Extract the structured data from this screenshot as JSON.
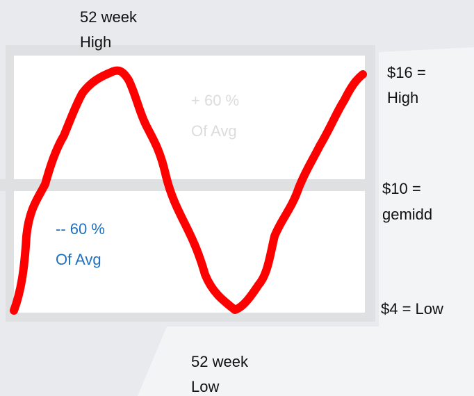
{
  "top_label": {
    "lines": [
      "52 week",
      "High"
    ]
  },
  "upper_zone": {
    "lines": [
      "+ 60 %",
      "Of Avg"
    ]
  },
  "lower_zone": {
    "lines": [
      "-- 60 %",
      "Of Avg"
    ]
  },
  "levels": [
    {
      "lines": [
        "$16 =",
        "High"
      ]
    },
    {
      "lines": [
        "$10 =",
        "gemidd"
      ]
    },
    {
      "lines": [
        "$4 = Low"
      ]
    }
  ],
  "bottom_label": {
    "lines": [
      "52 week",
      "Low"
    ]
  }
}
